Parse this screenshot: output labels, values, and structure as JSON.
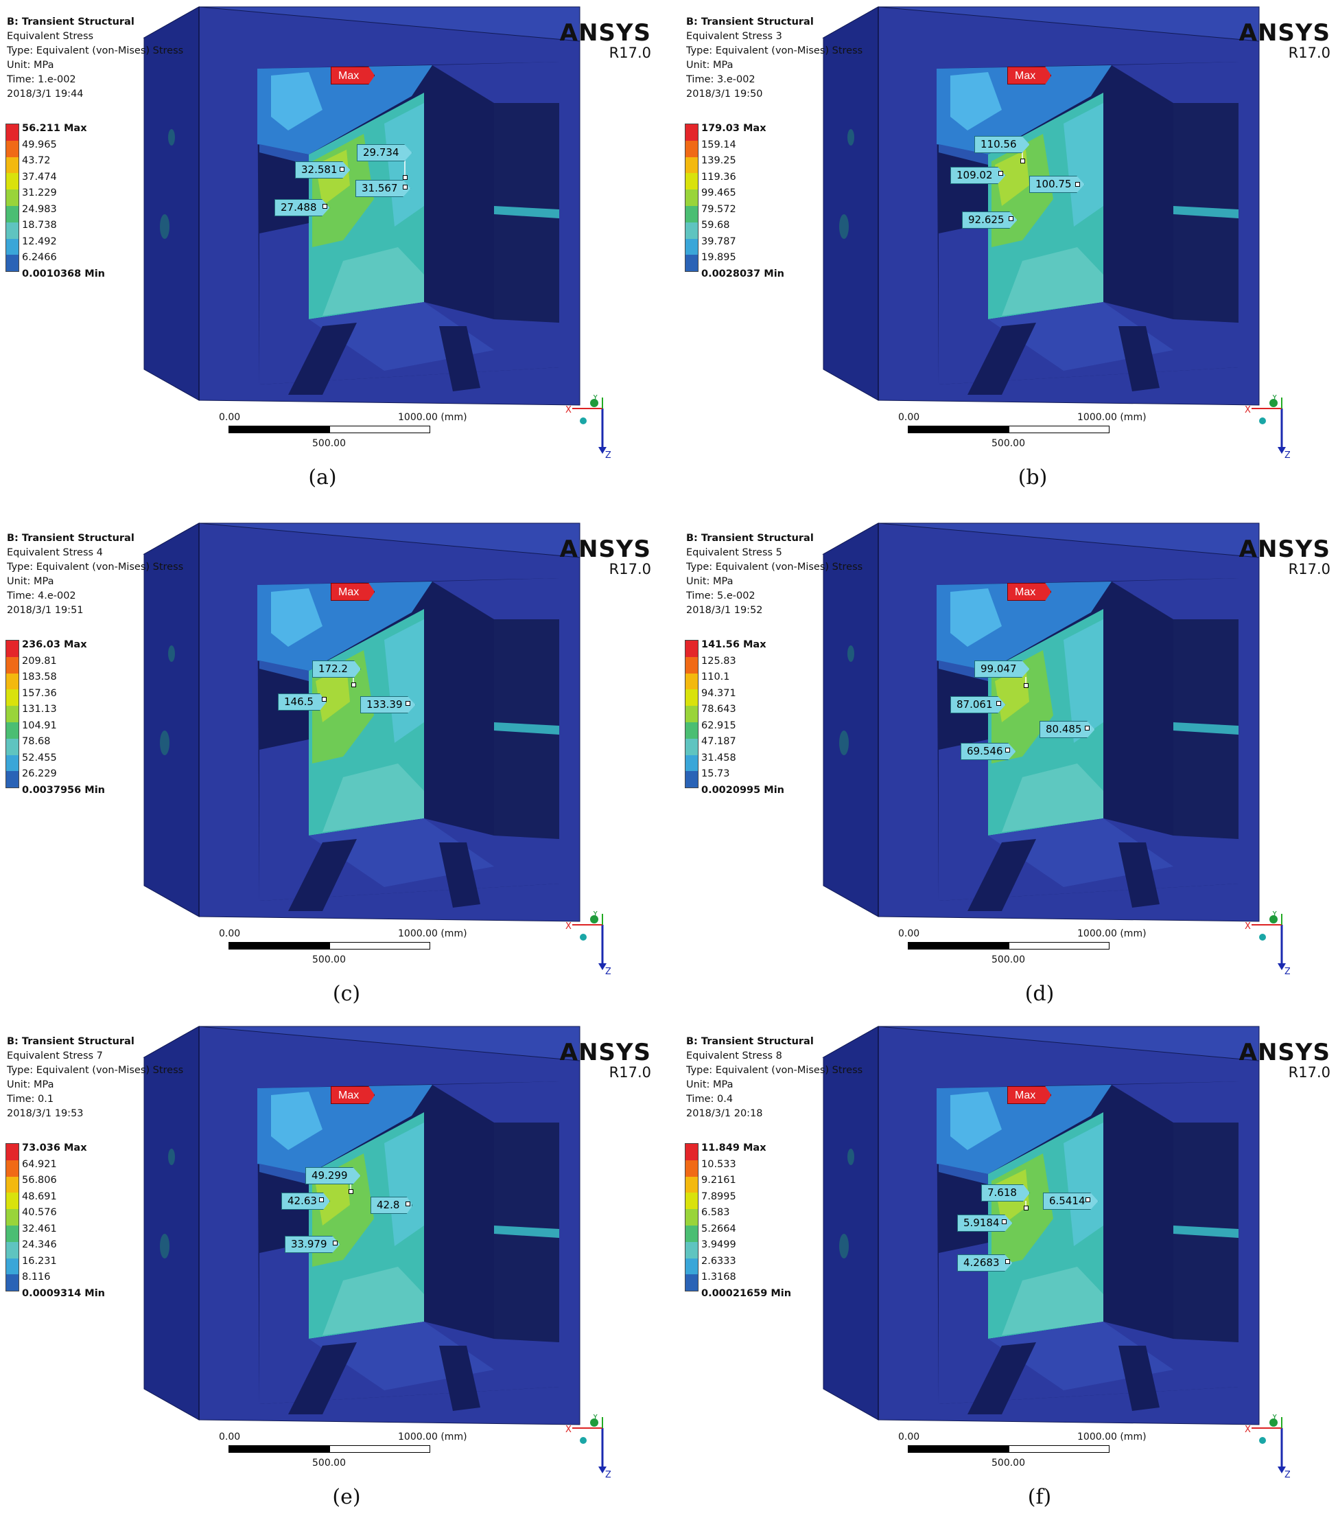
{
  "app": {
    "logo": "ANSYS",
    "version": "R17.0"
  },
  "common": {
    "analysis": "B: Transient Structural",
    "type": "Type: Equivalent (von-Mises) Stress",
    "unit": "Unit: MPa",
    "max_tag": "Max",
    "scale_zero": "0.00",
    "scale_end": "1000.00 (mm)",
    "scale_mid": "500.00",
    "axis_x": "X",
    "axis_y": "Y",
    "axis_z": "Z"
  },
  "legend_colors": [
    "#e4262a",
    "#f06a16",
    "#f3b90f",
    "#d9e20c",
    "#99d43a",
    "#4bbe73",
    "#5fc4c0",
    "#3aa6d8",
    "#2a63b6",
    "#3a3f99"
  ],
  "panels": [
    {
      "id": "a",
      "caption": "(a)",
      "result": "Equivalent Stress",
      "time": "Time: 1.e-002",
      "date": "2018/3/1 19:44",
      "legend": [
        "56.211 Max",
        "49.965",
        "43.72",
        "37.474",
        "31.229",
        "24.983",
        "18.738",
        "12.492",
        "6.2466",
        "0.0010368 Min"
      ],
      "probes": [
        "29.734",
        "32.581",
        "31.567",
        "27.488"
      ]
    },
    {
      "id": "b",
      "caption": "(b)",
      "result": "Equivalent Stress 3",
      "time": "Time: 3.e-002",
      "date": "2018/3/1 19:50",
      "legend": [
        "179.03 Max",
        "159.14",
        "139.25",
        "119.36",
        "99.465",
        "79.572",
        "59.68",
        "39.787",
        "19.895",
        "0.0028037 Min"
      ],
      "probes": [
        "110.56",
        "109.02",
        "100.75",
        "92.625"
      ]
    },
    {
      "id": "c",
      "caption": "(c)",
      "result": "Equivalent Stress 4",
      "time": "Time: 4.e-002",
      "date": "2018/3/1 19:51",
      "legend": [
        "236.03 Max",
        "209.81",
        "183.58",
        "157.36",
        "131.13",
        "104.91",
        "78.68",
        "52.455",
        "26.229",
        "0.0037956 Min"
      ],
      "probes": [
        "172.2",
        "146.5",
        "133.39"
      ]
    },
    {
      "id": "d",
      "caption": "(d)",
      "result": "Equivalent Stress 5",
      "time": "Time: 5.e-002",
      "date": "2018/3/1 19:52",
      "legend": [
        "141.56 Max",
        "125.83",
        "110.1",
        "94.371",
        "78.643",
        "62.915",
        "47.187",
        "31.458",
        "15.73",
        "0.0020995 Min"
      ],
      "probes": [
        "99.047",
        "87.061",
        "80.485",
        "69.546"
      ]
    },
    {
      "id": "e",
      "caption": "(e)",
      "result": "Equivalent Stress 7",
      "time": "Time: 0.1",
      "date": "2018/3/1 19:53",
      "legend": [
        "73.036 Max",
        "64.921",
        "56.806",
        "48.691",
        "40.576",
        "32.461",
        "24.346",
        "16.231",
        "8.116",
        "0.0009314 Min"
      ],
      "probes": [
        "49.299",
        "42.63",
        "42.8",
        "33.979"
      ]
    },
    {
      "id": "f",
      "caption": "(f)",
      "result": "Equivalent Stress 8",
      "time": "Time: 0.4",
      "date": "2018/3/1 20:18",
      "legend": [
        "11.849 Max",
        "10.533",
        "9.2161",
        "7.8995",
        "6.583",
        "5.2664",
        "3.9499",
        "2.6333",
        "1.3168",
        "0.00021659 Min"
      ],
      "probes": [
        "7.618",
        "6.5414",
        "5.9184",
        "4.2683"
      ]
    }
  ]
}
